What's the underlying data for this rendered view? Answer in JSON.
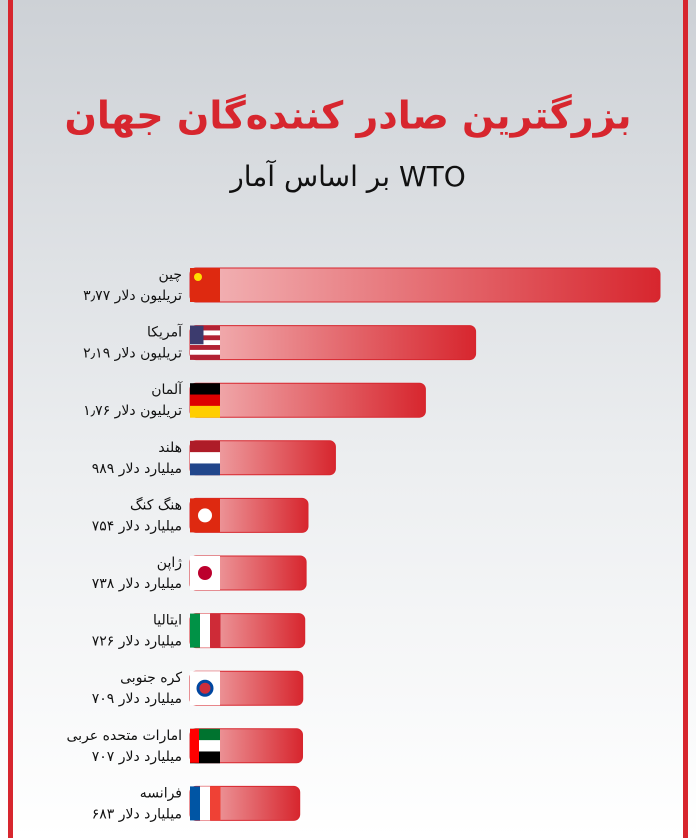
{
  "chart_data": {
    "type": "bar",
    "title": "بزرگترین صادر کننده‌گان جهان",
    "subtitle": "بر اساس آمار WTO",
    "categories": [
      "چین",
      "آمریکا",
      "آلمان",
      "هلند",
      "هنگ کنگ",
      "ژاپن",
      "ایتالیا",
      "کره جنوبی",
      "امارات متحده عربی",
      "فرانسه"
    ],
    "values": [
      3770,
      2190,
      1760,
      989,
      754,
      738,
      726,
      709,
      707,
      683
    ],
    "value_labels": [
      "۳٫۷۷ تریلیون دلار",
      "۲٫۱۹ تریلیون دلار",
      "۱٫۷۶ تریلیون دلار",
      "۹۸۹ میلیارد دلار",
      "۷۵۴ میلیارد دلار",
      "۷۳۸ میلیارد دلار",
      "۷۲۶ میلیارد دلار",
      "۷۰۹ میلیارد دلار",
      "۷۰۷ میلیارد دلار",
      "۶۸۳ میلیارد دلار"
    ],
    "color": "#d7262e"
  }
}
